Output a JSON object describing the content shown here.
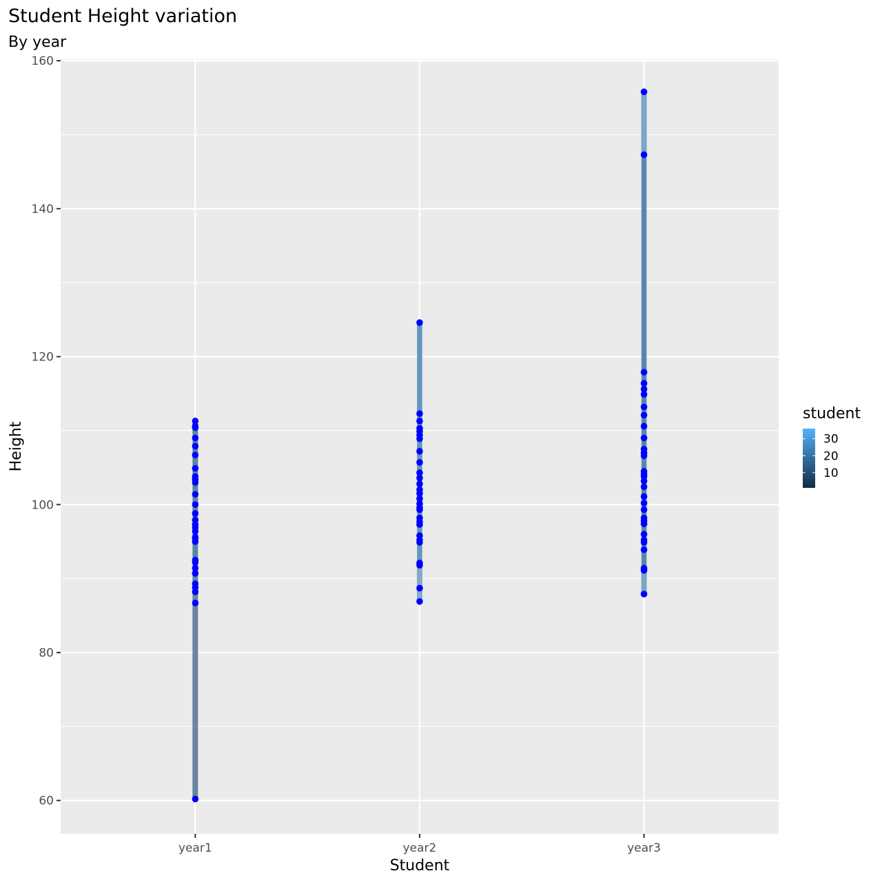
{
  "chart_data": {
    "type": "scatter",
    "title": "Student Height variation",
    "subtitle": "By year",
    "xlabel": "Student",
    "ylabel": "Height",
    "categories": [
      "year1",
      "year2",
      "year3"
    ],
    "ylim": [
      55.5,
      160.2
    ],
    "y_ticks": [
      60,
      80,
      100,
      120,
      140,
      160
    ],
    "grid": true,
    "legend": {
      "title": "student",
      "placement": "right",
      "type": "colorbar",
      "range": [
        1,
        36
      ],
      "ticks": [
        10,
        20,
        30
      ],
      "low_color": "#132b43",
      "high_color": "#56b1f7"
    },
    "point_color": "#0000ff",
    "series": [
      {
        "category": "year1",
        "values": [
          111.3,
          110.6,
          110.4,
          109.0,
          107.9,
          106.7,
          104.9,
          103.8,
          103.4,
          103.0,
          101.4,
          100.0,
          98.8,
          97.9,
          97.3,
          96.9,
          96.4,
          95.6,
          95.4,
          95.0,
          92.5,
          92.2,
          91.4,
          90.7,
          89.3,
          88.8,
          88.2,
          86.7,
          60.2
        ]
      },
      {
        "category": "year2",
        "values": [
          124.6,
          112.3,
          111.3,
          110.3,
          109.9,
          109.4,
          108.9,
          107.2,
          105.7,
          104.3,
          103.6,
          102.8,
          102.0,
          101.5,
          100.8,
          100.1,
          99.6,
          99.3,
          98.2,
          97.7,
          97.3,
          95.8,
          95.2,
          94.9,
          92.1,
          91.8,
          88.7,
          86.9
        ]
      },
      {
        "category": "year3",
        "values": [
          155.8,
          147.3,
          117.9,
          116.4,
          115.6,
          114.9,
          113.2,
          112.1,
          110.6,
          109.0,
          107.5,
          107.0,
          106.6,
          104.5,
          104.1,
          103.8,
          103.2,
          102.4,
          101.1,
          100.2,
          99.3,
          98.2,
          97.8,
          97.4,
          96.0,
          95.2,
          94.9,
          93.9,
          91.4,
          91.1,
          87.9
        ]
      }
    ]
  }
}
